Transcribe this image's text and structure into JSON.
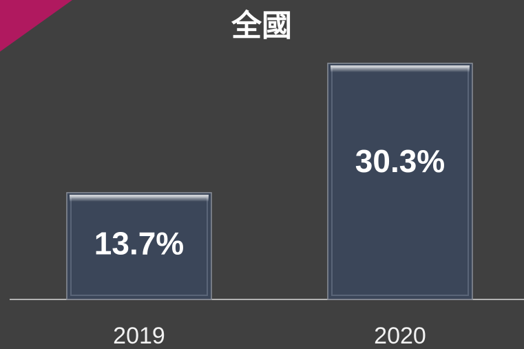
{
  "chart_data": {
    "type": "bar",
    "title": "全國",
    "categories": [
      "2019",
      "2020"
    ],
    "values": [
      13.7,
      30.3
    ],
    "value_labels": [
      "13.7%",
      "30.3%"
    ],
    "color": "#3b4659"
  }
}
